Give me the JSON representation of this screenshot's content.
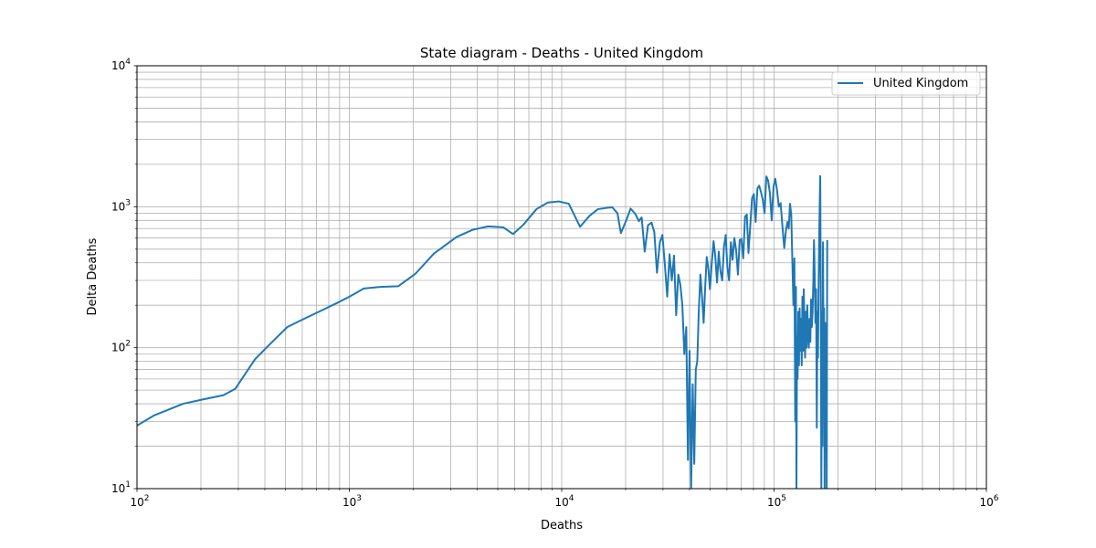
{
  "chart_data": {
    "type": "line",
    "title": "State diagram - Deaths - United Kingdom",
    "xlabel": "Deaths",
    "ylabel": "Delta Deaths",
    "xscale": "log",
    "yscale": "log",
    "xlim": [
      100,
      1000000
    ],
    "ylim": [
      10,
      10000
    ],
    "grid": "major and minor",
    "legend_position": "top-right",
    "x_ticks": [
      {
        "base": "10",
        "exp": "2"
      },
      {
        "base": "10",
        "exp": "3"
      },
      {
        "base": "10",
        "exp": "4"
      },
      {
        "base": "10",
        "exp": "5"
      },
      {
        "base": "10",
        "exp": "6"
      }
    ],
    "y_ticks": [
      {
        "base": "10",
        "exp": "1"
      },
      {
        "base": "10",
        "exp": "2"
      },
      {
        "base": "10",
        "exp": "3"
      },
      {
        "base": "10",
        "exp": "4"
      }
    ],
    "series": [
      {
        "name": "United Kingdom",
        "color": "#1f77b4",
        "points": [
          [
            100,
            28
          ],
          [
            120,
            33
          ],
          [
            165,
            40
          ],
          [
            205,
            43
          ],
          [
            255,
            46
          ],
          [
            290,
            51
          ],
          [
            360,
            83
          ],
          [
            420,
            105
          ],
          [
            510,
            140
          ],
          [
            600,
            158
          ],
          [
            720,
            180
          ],
          [
            860,
            205
          ],
          [
            1000,
            230
          ],
          [
            1170,
            263
          ],
          [
            1400,
            270
          ],
          [
            1700,
            273
          ],
          [
            2050,
            335
          ],
          [
            2500,
            465
          ],
          [
            3200,
            610
          ],
          [
            3800,
            685
          ],
          [
            4500,
            725
          ],
          [
            5300,
            715
          ],
          [
            5900,
            640
          ],
          [
            6600,
            745
          ],
          [
            7600,
            960
          ],
          [
            8600,
            1070
          ],
          [
            9700,
            1090
          ],
          [
            10800,
            1050
          ],
          [
            12200,
            720
          ],
          [
            13500,
            860
          ],
          [
            14800,
            960
          ],
          [
            16200,
            980
          ],
          [
            17300,
            990
          ],
          [
            18300,
            900
          ],
          [
            19000,
            650
          ],
          [
            20200,
            810
          ],
          [
            21100,
            970
          ],
          [
            22200,
            890
          ],
          [
            23100,
            790
          ],
          [
            23800,
            840
          ],
          [
            24600,
            480
          ],
          [
            25500,
            740
          ],
          [
            26500,
            770
          ],
          [
            27300,
            660
          ],
          [
            28100,
            340
          ],
          [
            29000,
            560
          ],
          [
            29800,
            630
          ],
          [
            30600,
            390
          ],
          [
            31400,
            230
          ],
          [
            32200,
            460
          ],
          [
            33000,
            300
          ],
          [
            33800,
            450
          ],
          [
            34600,
            170
          ],
          [
            35400,
            330
          ],
          [
            36200,
            280
          ],
          [
            37000,
            200
          ],
          [
            37800,
            90
          ],
          [
            38600,
            140
          ],
          [
            39300,
            16
          ],
          [
            40000,
            95
          ],
          [
            40700,
            10
          ],
          [
            41400,
            55
          ],
          [
            42100,
            15
          ],
          [
            42800,
            70
          ],
          [
            43500,
            80
          ],
          [
            44200,
            180
          ],
          [
            45000,
            330
          ],
          [
            45800,
            230
          ],
          [
            46600,
            150
          ],
          [
            47400,
            270
          ],
          [
            48200,
            440
          ],
          [
            49000,
            370
          ],
          [
            49900,
            260
          ],
          [
            50900,
            400
          ],
          [
            51900,
            570
          ],
          [
            52900,
            440
          ],
          [
            53900,
            290
          ],
          [
            54900,
            480
          ],
          [
            55900,
            350
          ],
          [
            57000,
            300
          ],
          [
            58100,
            520
          ],
          [
            59200,
            630
          ],
          [
            60300,
            370
          ],
          [
            61400,
            300
          ],
          [
            62600,
            560
          ],
          [
            63800,
            420
          ],
          [
            65000,
            600
          ],
          [
            66300,
            490
          ],
          [
            67600,
            330
          ],
          [
            68900,
            580
          ],
          [
            70200,
            590
          ],
          [
            71600,
            430
          ],
          [
            73000,
            850
          ],
          [
            74400,
            880
          ],
          [
            75800,
            470
          ],
          [
            77300,
            740
          ],
          [
            78800,
            1150
          ],
          [
            80300,
            1230
          ],
          [
            81900,
            780
          ],
          [
            83500,
            1350
          ],
          [
            85100,
            1410
          ],
          [
            86800,
            1270
          ],
          [
            88500,
            1120
          ],
          [
            90200,
            900
          ],
          [
            92000,
            1640
          ],
          [
            93800,
            1530
          ],
          [
            95600,
            1250
          ],
          [
            97500,
            800
          ],
          [
            99400,
            1380
          ],
          [
            101300,
            1580
          ],
          [
            103300,
            1310
          ],
          [
            105300,
            1000
          ],
          [
            107400,
            1060
          ],
          [
            109500,
            730
          ],
          [
            111700,
            510
          ],
          [
            113800,
            680
          ],
          [
            115600,
            780
          ],
          [
            117300,
            700
          ],
          [
            118900,
            1050
          ],
          [
            120500,
            880
          ],
          [
            122000,
            400
          ],
          [
            123400,
            200
          ],
          [
            124700,
            430
          ],
          [
            125800,
            30
          ],
          [
            126800,
            270
          ],
          [
            127500,
            10
          ],
          [
            128300,
            120
          ],
          [
            129100,
            60
          ],
          [
            130000,
            180
          ],
          [
            131000,
            75
          ],
          [
            132000,
            190
          ],
          [
            133000,
            95
          ],
          [
            134000,
            160
          ],
          [
            135000,
            75
          ],
          [
            136000,
            230
          ],
          [
            137000,
            95
          ],
          [
            138000,
            260
          ],
          [
            139000,
            150
          ],
          [
            140000,
            85
          ],
          [
            141000,
            180
          ],
          [
            142200,
            100
          ],
          [
            143400,
            200
          ],
          [
            144600,
            120
          ],
          [
            145800,
            100
          ],
          [
            147000,
            160
          ],
          [
            148200,
            110
          ],
          [
            149400,
            220
          ],
          [
            150600,
            140
          ],
          [
            151800,
            180
          ],
          [
            153000,
            280
          ],
          [
            154200,
            580
          ],
          [
            155400,
            330
          ],
          [
            156600,
            150
          ],
          [
            157800,
            260
          ],
          [
            159000,
            27
          ],
          [
            160000,
            180
          ],
          [
            161000,
            85
          ],
          [
            162000,
            250
          ],
          [
            163000,
            540
          ],
          [
            164000,
            1000
          ],
          [
            165000,
            1650
          ],
          [
            166000,
            220
          ],
          [
            167000,
            10
          ],
          [
            168000,
            180
          ],
          [
            169000,
            20
          ],
          [
            170000,
            560
          ],
          [
            171000,
            90
          ],
          [
            172000,
            190
          ],
          [
            173000,
            10
          ],
          [
            174000,
            150
          ],
          [
            175000,
            45
          ],
          [
            176000,
            120
          ],
          [
            177000,
            10
          ],
          [
            178000,
            580
          ]
        ]
      }
    ]
  }
}
